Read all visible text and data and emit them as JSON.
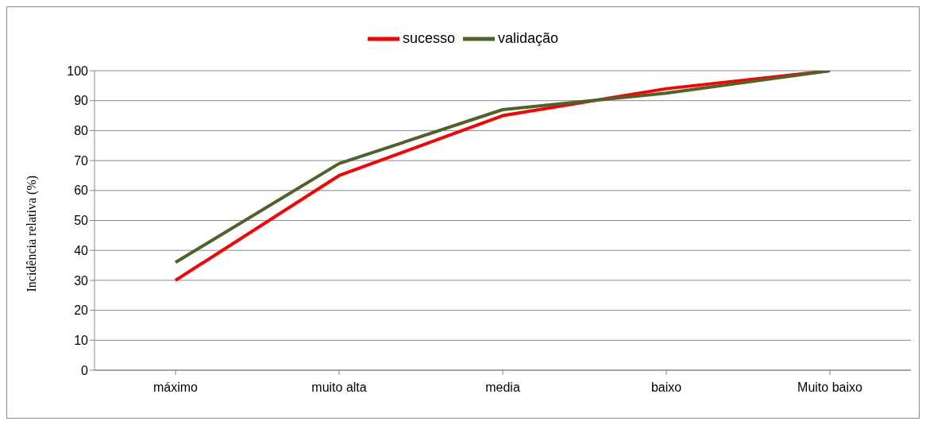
{
  "chart_data": {
    "type": "line",
    "ylabel": "Incidência relativa (%)",
    "categories": [
      "máximo",
      "muito alta",
      "media",
      "baixo",
      "Muito baixo"
    ],
    "series": [
      {
        "name": "sucesso",
        "color": "#ff0000",
        "values": [
          30,
          65,
          85,
          94,
          100
        ]
      },
      {
        "name": "validação",
        "color": "#4f6228",
        "values": [
          36,
          69,
          87,
          92.5,
          100
        ]
      }
    ],
    "ylim": [
      0,
      100
    ],
    "yticks": [
      0,
      10,
      20,
      30,
      40,
      50,
      60,
      70,
      80,
      90,
      100
    ],
    "grid": "y",
    "legend": "top",
    "marker": "none",
    "line_style": "solid"
  }
}
